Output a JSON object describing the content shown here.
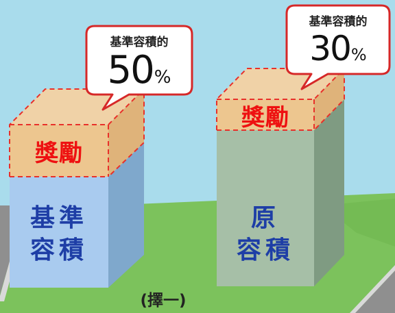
{
  "left_building": {
    "reward_label": "獎勵",
    "base_label_line1": "基準",
    "base_label_line2": "容積"
  },
  "right_building": {
    "reward_label": "獎勵",
    "base_label_line1": "原",
    "base_label_line2": "容積"
  },
  "left_bubble": {
    "caption": "基準容積的",
    "number": "50",
    "unit": "%"
  },
  "right_bubble": {
    "caption": "基準容積的",
    "number": "30",
    "unit": "%"
  },
  "choice_label": "(擇一)",
  "colors": {
    "sky": "#a9dcec",
    "grass": "#7cc25c",
    "road": "#8f8f8f",
    "left_building_front": "#a9cbef",
    "left_building_side": "#7fa8cc",
    "right_building_front": "#a6bfa7",
    "right_building_side": "#7f9b82",
    "reward_fill": "#f0c48a",
    "reward_dash": "#e8302a",
    "bubble_border": "#d62828",
    "base_text": "#1e3ea6",
    "reward_text": "#ee1111"
  }
}
